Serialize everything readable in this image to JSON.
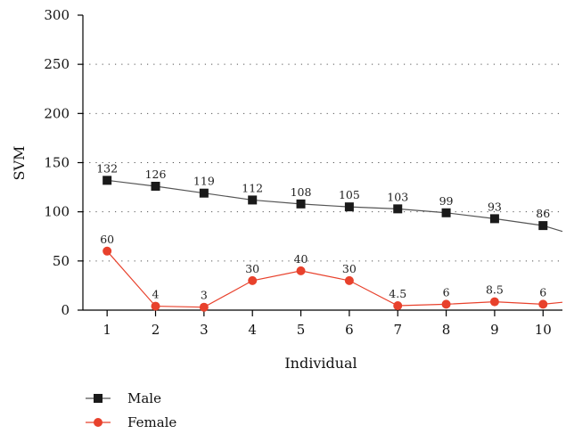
{
  "chart_data": {
    "type": "line",
    "title": "",
    "xlabel": "Individual",
    "ylabel": "SVM",
    "x": [
      1,
      2,
      3,
      4,
      5,
      6,
      7,
      8,
      9,
      10
    ],
    "xlim": [
      0.5,
      10.4
    ],
    "ylim": [
      0,
      300
    ],
    "yticks": [
      0,
      50,
      100,
      150,
      200,
      250,
      300
    ],
    "grid": "horizontal dotted",
    "legend_position": "bottom-left",
    "series": [
      {
        "name": "Male",
        "color": "#1a1a1a",
        "line_color": "#555555",
        "marker": "square",
        "values": [
          132,
          126,
          119,
          112,
          108,
          105,
          103,
          99,
          93,
          86
        ],
        "labels": [
          "132",
          "126",
          "119",
          "112",
          "108",
          "105",
          "103",
          "99",
          "93",
          "86"
        ],
        "continues_to": 80
      },
      {
        "name": "Female",
        "color": "#e8412c",
        "line_color": "#e8412c",
        "marker": "circle",
        "values": [
          60,
          4,
          3,
          30,
          40,
          30,
          4.5,
          6,
          8.5,
          6
        ],
        "labels": [
          "60",
          "4",
          "3",
          "30",
          "40",
          "30",
          "4.5",
          "6",
          "8.5",
          "6"
        ],
        "continues_to": 8
      }
    ]
  }
}
